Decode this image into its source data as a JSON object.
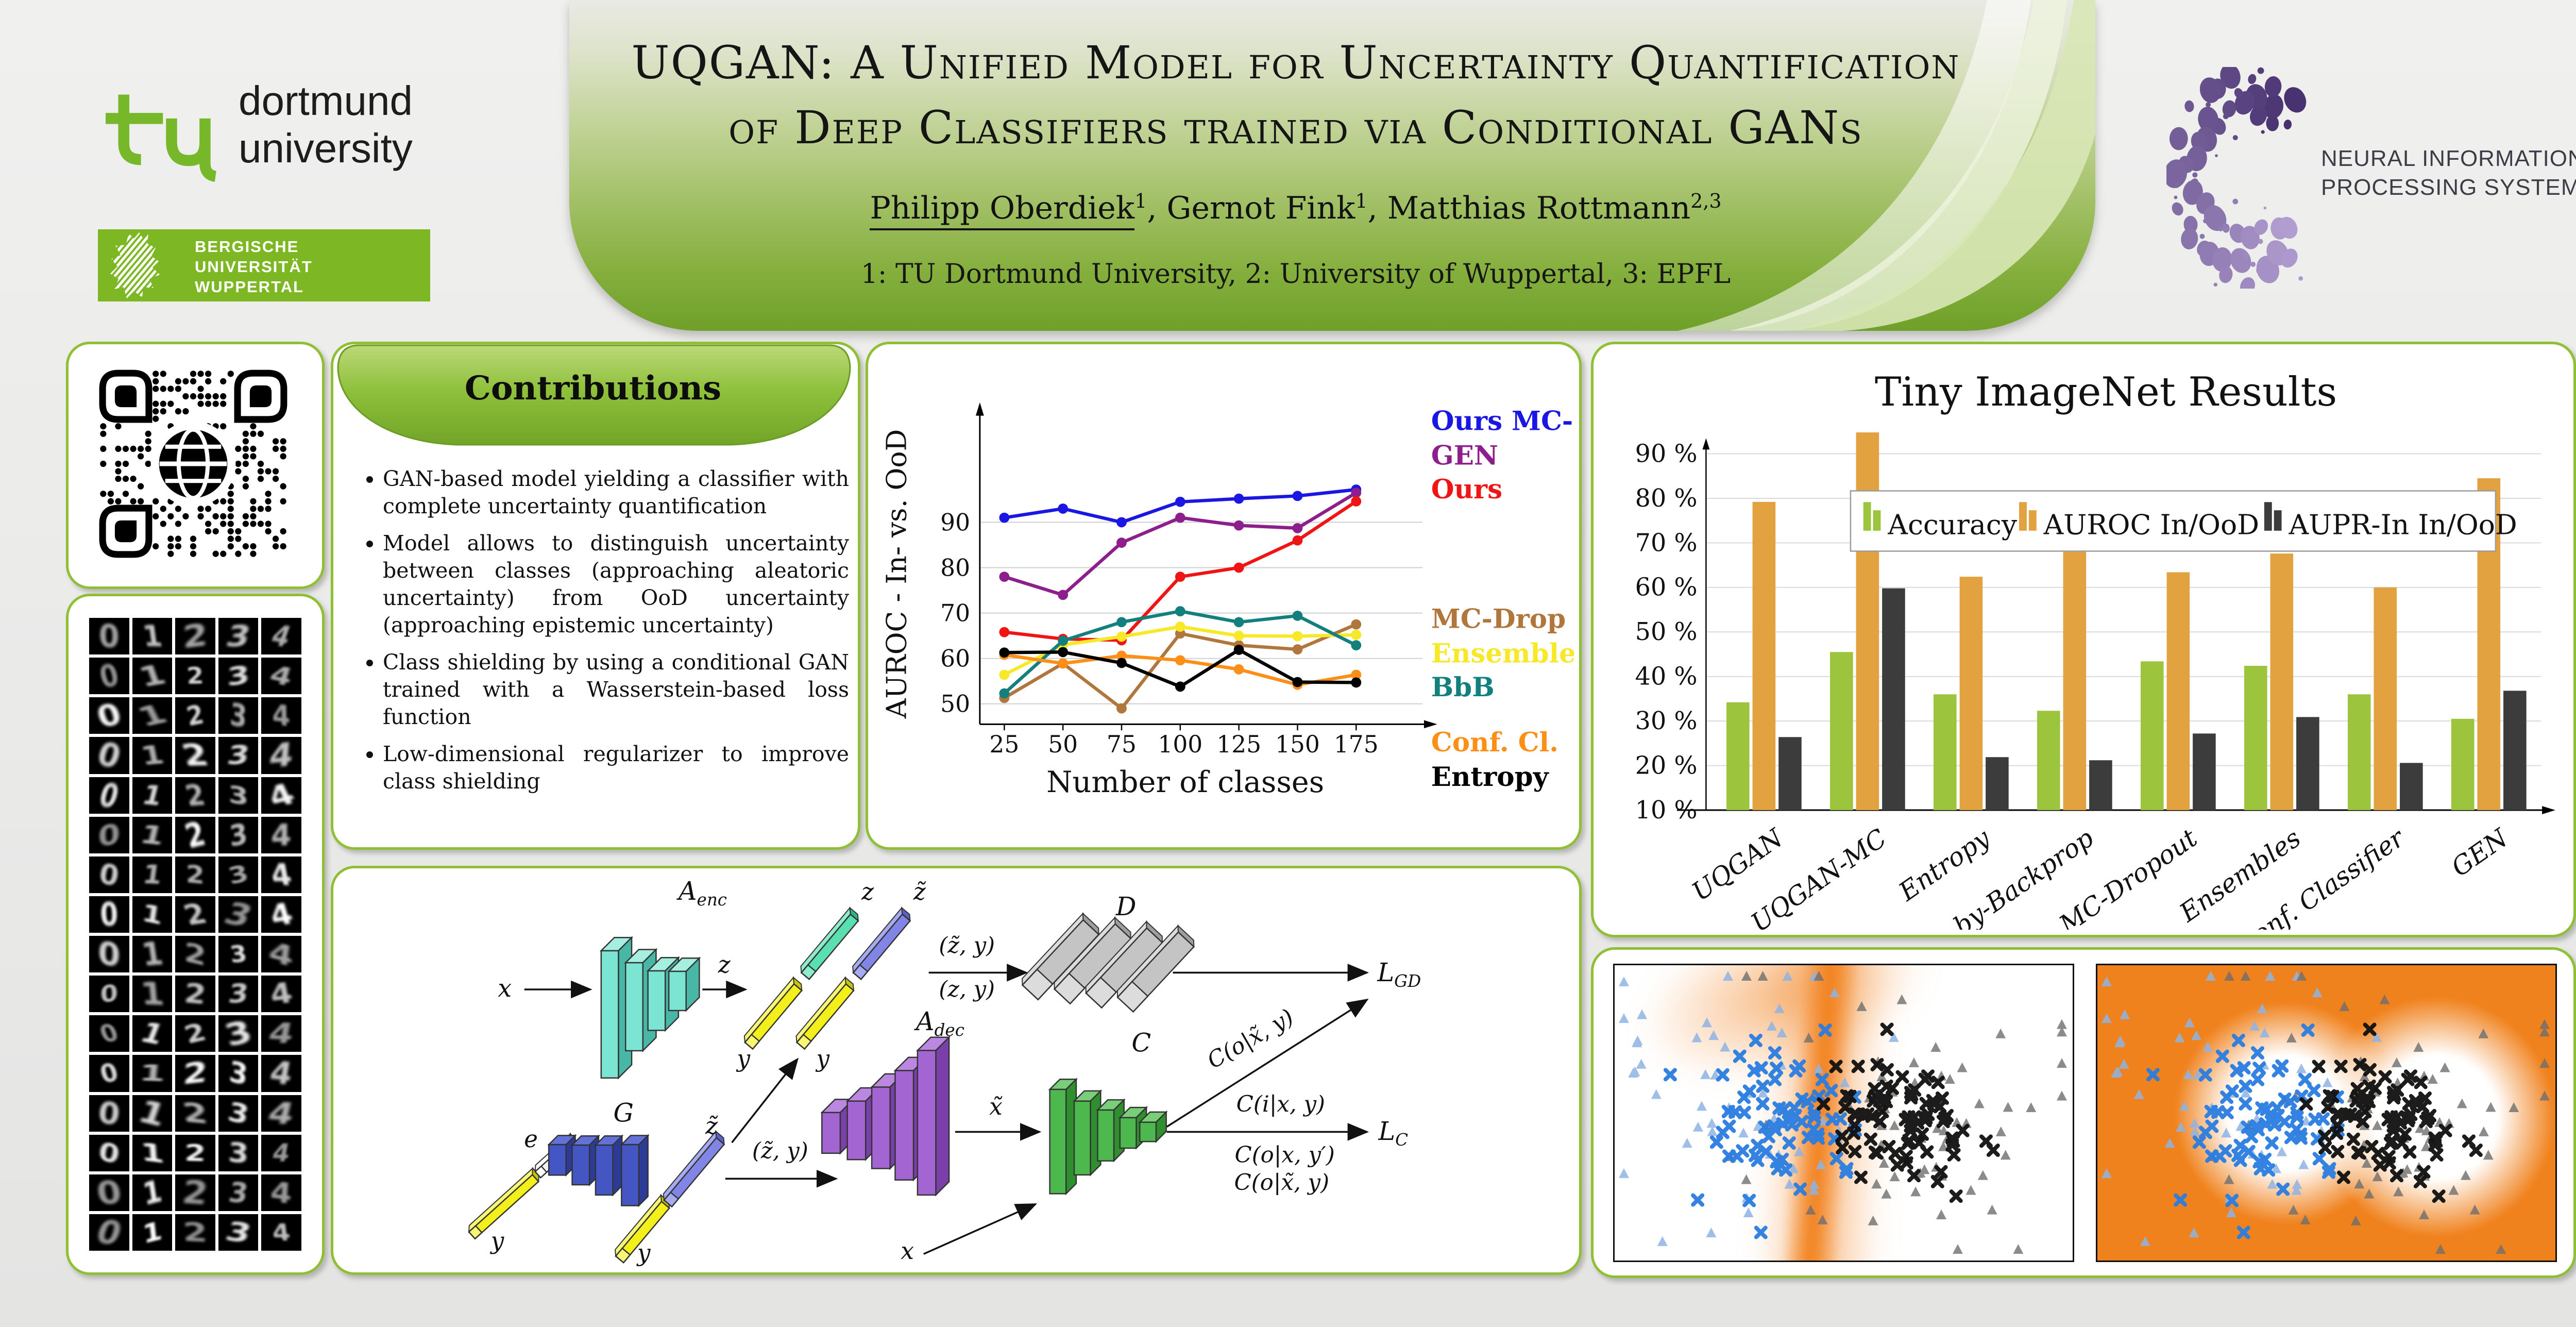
{
  "header": {
    "title_line1": "UQGAN: A Unified Model for Uncertainty Quantification",
    "title_line2": "of Deep Classifiers trained via Conditional GANs",
    "authors": [
      {
        "name": "Philipp Oberdiek",
        "sup": "1",
        "underline": true
      },
      {
        "name": "Gernot Fink",
        "sup": "1",
        "underline": false
      },
      {
        "name": "Matthias Rottmann",
        "sup": "2,3",
        "underline": false
      }
    ],
    "affiliations": "1: TU Dortmund University, 2: University of Wuppertal, 3: EPFL"
  },
  "logos": {
    "tu": {
      "word1": "dortmund",
      "word2": "university"
    },
    "buw": {
      "line1": "BERGISCHE",
      "line2": "UNIVERSITÄT",
      "line3": "WUPPERTAL"
    },
    "neurips": {
      "line1": "NEURAL INFORMATION",
      "line2": "PROCESSING SYSTEMS"
    }
  },
  "contributions": {
    "title": "Contributions",
    "items": [
      "GAN-based model yielding a classifier with complete uncertainty quantification",
      "Model allows to distinguish uncertainty between classes (approaching aleatoric uncertainty) from OoD uncertainty (approaching epistemic uncertainty)",
      "Class shielding by using a conditional GAN trained with a Wasserstein-based loss function",
      "Low-dimensional regularizer to improve class shielding"
    ]
  },
  "chart_data": [
    {
      "type": "line",
      "title": "",
      "xlabel": "Number of classes",
      "ylabel": "AUROC - In- vs. OoD",
      "x": [
        25,
        50,
        75,
        100,
        125,
        150,
        175
      ],
      "yticks": [
        50,
        60,
        70,
        80,
        90
      ],
      "ylim": [
        48,
        99
      ],
      "grid": true,
      "legend_position": "right",
      "series": [
        {
          "name": "Ours MC-Drop",
          "color": "#1a16e3",
          "values": [
            91,
            93,
            90,
            94.5,
            95.2,
            95.8,
            97.2
          ]
        },
        {
          "name": "GEN",
          "color": "#8c1f8c",
          "values": [
            78,
            74,
            85.5,
            91,
            89.3,
            88.7,
            96.5
          ]
        },
        {
          "name": "Ours",
          "color": "#f01414",
          "values": [
            65.8,
            64.3,
            64,
            78,
            80,
            86,
            94.6
          ]
        },
        {
          "name": "MC-Drop",
          "color": "#b0763b",
          "values": [
            51.3,
            58.9,
            49,
            65.5,
            62.9,
            62,
            67.5
          ]
        },
        {
          "name": "Ensemble",
          "color": "#f7e927",
          "values": [
            56.4,
            63,
            64.8,
            67,
            65,
            64.9,
            65.2
          ]
        },
        {
          "name": "BbB",
          "color": "#14807d",
          "values": [
            52.3,
            63.9,
            68,
            70.4,
            68,
            69.4,
            62.9
          ]
        },
        {
          "name": "Conf. Cl.",
          "color": "#fd8f17",
          "values": [
            60.8,
            58.9,
            60.6,
            59.6,
            57.6,
            54.2,
            56.4
          ]
        },
        {
          "name": "Entropy",
          "color": "#000000",
          "values": [
            61.3,
            61.4,
            59,
            53.8,
            61.9,
            54.8,
            54.7
          ]
        }
      ]
    },
    {
      "type": "bar",
      "title": "Tiny ImageNet Results",
      "categories": [
        "UQGAN",
        "UQGAN-MC",
        "Entropy",
        "Bayes-by-Backprop",
        "MC-Dropout",
        "Ensembles",
        "Conf. Classifier",
        "GEN"
      ],
      "yticks": [
        10,
        20,
        30,
        40,
        50,
        60,
        70,
        80,
        90
      ],
      "ytick_labels": [
        "10 %",
        "20 %",
        "30 %",
        "40 %",
        "50 %",
        "60 %",
        "70 %",
        "80 %",
        "90 %"
      ],
      "ylim": [
        10,
        96
      ],
      "grid": true,
      "legend_position": "top",
      "series": [
        {
          "name": "Accuracy",
          "color": "#9cc43c",
          "values": [
            34.2,
            45.5,
            36,
            32.3,
            43.4,
            42.4,
            36,
            30.5
          ]
        },
        {
          "name": "AUROC In/OoD",
          "color": "#e2a23f",
          "values": [
            79.2,
            94.8,
            62.4,
            68,
            63.4,
            67.6,
            60,
            84.5
          ]
        },
        {
          "name": "AUPR-In In/OoD",
          "color": "#3c3c3c",
          "values": [
            26.4,
            59.8,
            21.9,
            21.2,
            27.2,
            30.9,
            20.6,
            36.8
          ]
        }
      ]
    }
  ],
  "architecture": {
    "enc": "A",
    "enc_sub": "enc",
    "dec": "A",
    "dec_sub": "dec",
    "gen": "G",
    "disc": "D",
    "cls": "C",
    "x": "x",
    "y": "y",
    "z": "z",
    "e": "e",
    "z_tilde": "z̃",
    "x_tilde": "x̃",
    "pair_zt_y": "(z̃, y)",
    "pair_z_y": "(z, y)",
    "loss_gd": "L",
    "loss_gd_sub": "GD",
    "loss_c": "L",
    "loss_c_sub": "C",
    "c_ood_gen": "C(o|x̃, y)",
    "c_in": "C(i|x, y)",
    "c_ood_wrong": "C(o|x, y′)",
    "c_ood_gen2": "C(o|x̃, y)"
  },
  "scatter": {
    "left_bg": "#ffffff",
    "right_bg": "#f0821d",
    "boundary_color": "#f0811d",
    "markers": {
      "class1_x": {
        "shape": "x",
        "color": "#2a7de1",
        "n": 72
      },
      "class2_x": {
        "shape": "x",
        "color": "#101010",
        "n": 80
      },
      "ood_left_triangles": {
        "shape": "triangle",
        "color": "#8fb4e4",
        "n": 56
      },
      "ood_right_triangles": {
        "shape": "triangle",
        "color": "#6f6f6f",
        "n": 64
      }
    }
  },
  "qr": {
    "center_icon": "globe-icon"
  },
  "mnist": {
    "columns_digits": [
      0,
      1,
      2,
      3,
      4
    ],
    "rows": 16
  }
}
